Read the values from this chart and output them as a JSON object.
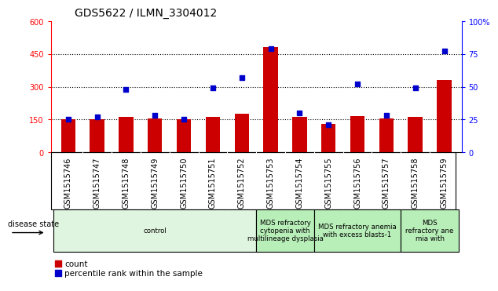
{
  "title": "GDS5622 / ILMN_3304012",
  "samples": [
    "GSM1515746",
    "GSM1515747",
    "GSM1515748",
    "GSM1515749",
    "GSM1515750",
    "GSM1515751",
    "GSM1515752",
    "GSM1515753",
    "GSM1515754",
    "GSM1515755",
    "GSM1515756",
    "GSM1515757",
    "GSM1515758",
    "GSM1515759"
  ],
  "counts": [
    150,
    150,
    160,
    155,
    150,
    160,
    175,
    480,
    160,
    130,
    165,
    155,
    160,
    330
  ],
  "percentile_ranks": [
    25,
    27,
    48,
    28,
    25,
    49,
    57,
    79,
    30,
    21,
    52,
    28,
    49,
    77
  ],
  "bar_color": "#cc0000",
  "dot_color": "#0000cc",
  "ylim_left": [
    0,
    600
  ],
  "ylim_right": [
    0,
    100
  ],
  "yticks_left": [
    0,
    150,
    300,
    450,
    600
  ],
  "yticks_right": [
    0,
    25,
    50,
    75,
    100
  ],
  "ytick_labels_right": [
    "0",
    "25",
    "50",
    "75",
    "100%"
  ],
  "disease_group_labels": [
    "control",
    "MDS refractory\ncytopenia with\nmultilineage dysplasia",
    "MDS refractory anemia\nwith excess blasts-1",
    "MDS\nrefractory ane\nmia with"
  ],
  "disease_group_starts": [
    0,
    7,
    9,
    12
  ],
  "disease_group_ends": [
    7,
    9,
    12,
    14
  ],
  "disease_group_colors": [
    "#e0f5e0",
    "#b8eeb8",
    "#b8eeb8",
    "#b8eeb8"
  ],
  "disease_state_label": "disease state",
  "legend_count_label": "count",
  "legend_pct_label": "percentile rank within the sample",
  "background_color": "#ffffff",
  "title_fontsize": 10,
  "tick_fontsize": 7,
  "bar_width": 0.5,
  "xtick_bg_color": "#c8c8c8"
}
